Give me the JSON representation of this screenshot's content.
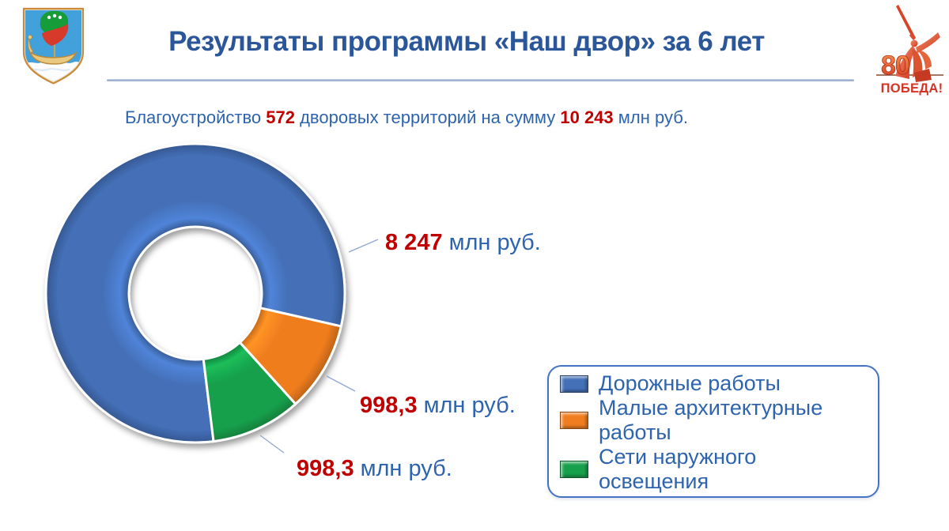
{
  "header": {
    "title": "Результаты программы «Наш двор» за 6 лет",
    "right_logo": {
      "number": "80",
      "caption": "ПОБЕДА!"
    }
  },
  "subtitle": {
    "parts": [
      {
        "text": "Благоустройство ",
        "style": "blue"
      },
      {
        "text": "572",
        "style": "red"
      },
      {
        "text": " дворовых территорий на сумму ",
        "style": "blue"
      },
      {
        "text": "10 243",
        "style": "red"
      },
      {
        "text": " млн руб.",
        "style": "blue"
      }
    ]
  },
  "chart_data": {
    "type": "pie",
    "donut": true,
    "title": "",
    "start_angle_deg": 173,
    "inner_radius_ratio": 0.444,
    "legend_position": "bottom-right",
    "total_value": 10243.6,
    "slices": [
      {
        "label": "Дорожные работы",
        "value": 8247,
        "display_value": "8 247",
        "unit": "млн руб.",
        "color": "#4470B8"
      },
      {
        "label": "Малые архитектурные работы",
        "value": 998.3,
        "display_value": "998,3",
        "unit": "млн руб.",
        "color": "#F07D1F"
      },
      {
        "label": "Сети наружного освещения",
        "value": 998.3,
        "display_value": "998,3",
        "unit": "млн руб.",
        "color": "#17A04B"
      }
    ]
  },
  "colors": {
    "title_blue": "#2B579A",
    "text_blue": "#2E64AD",
    "accent_red": "#C00000",
    "legend_border": "#4472C4"
  }
}
